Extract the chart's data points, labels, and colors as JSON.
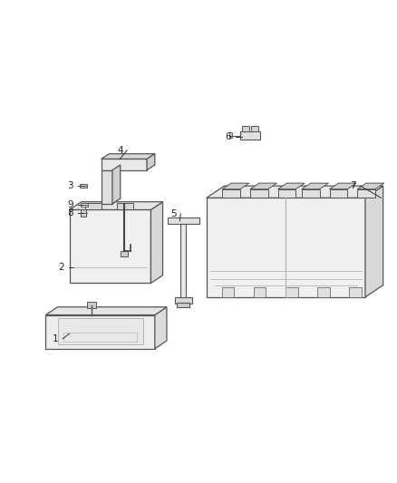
{
  "background_color": "#ffffff",
  "line_color": "#555555",
  "light_line_color": "#aaaaaa",
  "text_color": "#222222",
  "fig_width": 4.38,
  "fig_height": 5.33,
  "dpi": 100
}
